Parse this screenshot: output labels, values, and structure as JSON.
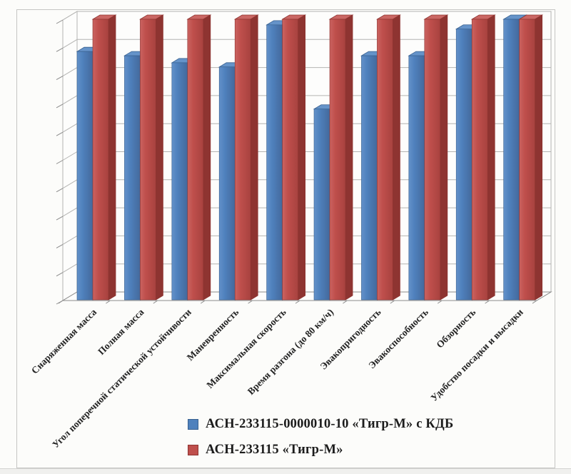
{
  "chart_data": {
    "type": "bar",
    "style": "3d-clustered-column",
    "title": "",
    "xlabel": "",
    "ylabel": "",
    "categories": [
      "Снаряженная масса",
      "Полная масса",
      "Угол поперечной статической устойчивости",
      "Маневренность",
      "Максимальная скорость",
      "Время разгона (до 80 км/ч)",
      "Эвакопригодность",
      "Эвакоспособность",
      "Обзорность",
      "Удобство посадки и высадки"
    ],
    "series": [
      {
        "name": "АСН-233115-0000010-10 «Тигр-М» с КДБ",
        "color": "#4f81bd",
        "color_top": "#6593c9",
        "color_side": "#38608f",
        "values": [
          8.85,
          8.7,
          8.45,
          8.3,
          9.8,
          6.8,
          8.7,
          8.7,
          9.65,
          10
        ]
      },
      {
        "name": "АСН-233115 «Тигр-М»",
        "color": "#bf4f4c",
        "color_top": "#ca6764",
        "color_side": "#8e3431",
        "values": [
          10,
          10,
          10,
          10,
          10,
          10,
          10,
          10,
          10,
          10
        ]
      }
    ],
    "ylim": [
      0,
      10
    ],
    "gridline_step": 1,
    "grid": true,
    "legend_position": "bottom-center",
    "axis_label_rotation_deg": -45,
    "gridline_color": "#b4b4b2",
    "axis_color": "#8a8a8a",
    "border_color": "#c6c6c4",
    "label_color": "#222222"
  }
}
